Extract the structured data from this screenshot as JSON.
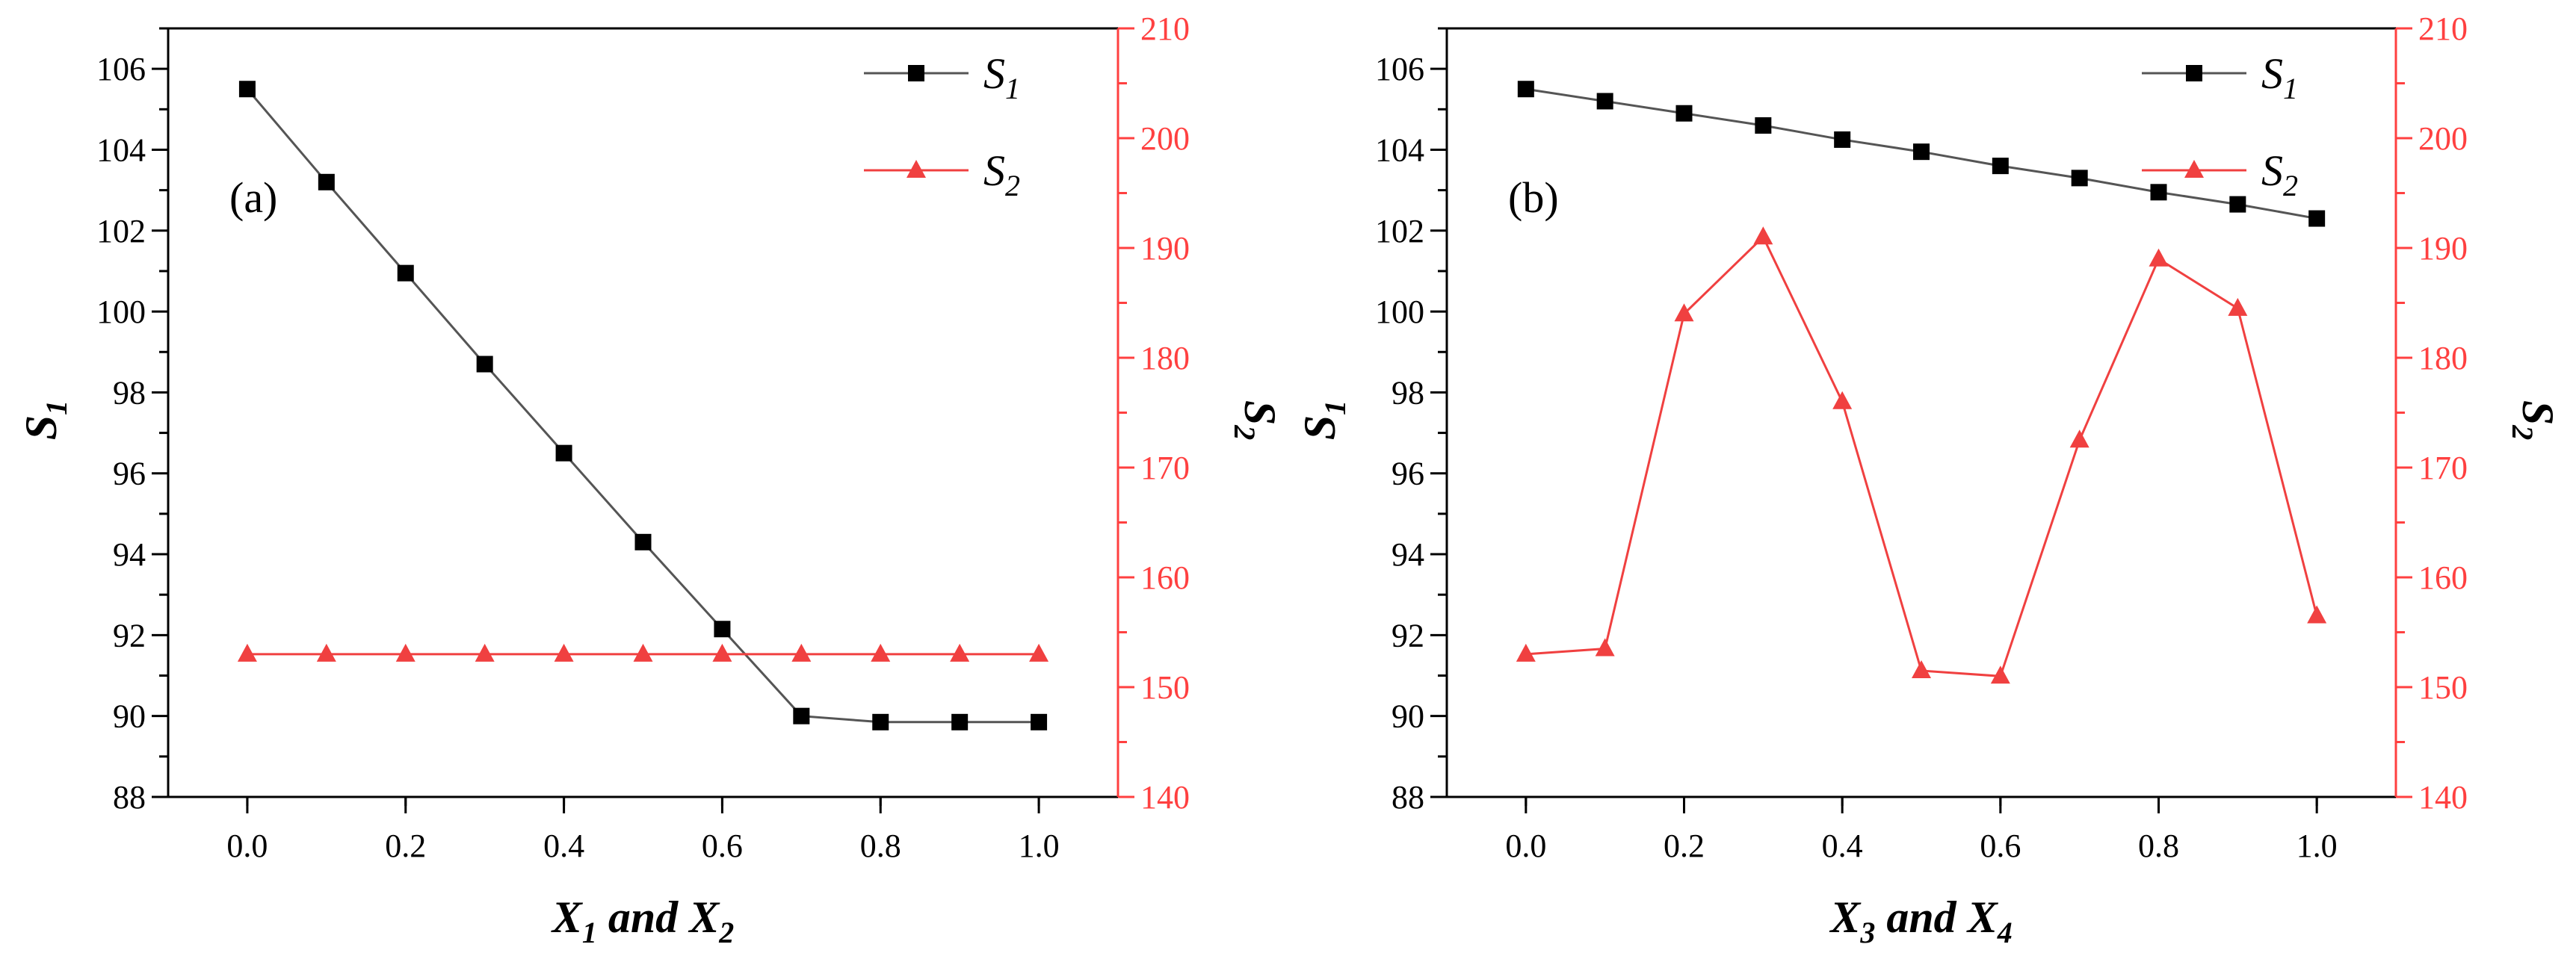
{
  "chart_data": [
    {
      "type": "line",
      "panel_label": "(a)",
      "x": [
        0.0,
        0.1,
        0.2,
        0.3,
        0.4,
        0.5,
        0.6,
        0.7,
        0.8,
        0.9,
        1.0
      ],
      "xlim": [
        -0.1,
        1.1
      ],
      "xticks": [
        "0.0",
        "0.2",
        "0.4",
        "0.6",
        "0.8",
        "1.0"
      ],
      "xlabel": {
        "v1": "X",
        "s1": "1",
        "mid": " and  ",
        "v2": "X",
        "s2": "2"
      },
      "y_left": {
        "label": "S",
        "sub": "1",
        "lim": [
          88,
          107
        ],
        "ticks": [
          "88",
          "90",
          "92",
          "94",
          "96",
          "98",
          "100",
          "102",
          "104",
          "106"
        ]
      },
      "y_right": {
        "label": "S",
        "sub": "2",
        "lim": [
          140,
          210
        ],
        "ticks": [
          "140",
          "150",
          "160",
          "170",
          "180",
          "190",
          "200",
          "210"
        ]
      },
      "series": [
        {
          "name": "S",
          "sub": "1",
          "axis": "left",
          "marker": "square",
          "color": "#000000",
          "line_color": "#555555",
          "values": [
            105.5,
            103.2,
            100.95,
            98.7,
            96.5,
            94.3,
            92.15,
            90.0,
            89.85,
            89.85,
            89.85
          ]
        },
        {
          "name": "S",
          "sub": "2",
          "axis": "right",
          "marker": "triangle",
          "color": "#f04040",
          "line_color": "#f04040",
          "values": [
            153,
            153,
            153,
            153,
            153,
            153,
            153,
            153,
            153,
            153,
            153
          ]
        }
      ],
      "legend": "top-right"
    },
    {
      "type": "line",
      "panel_label": "(b)",
      "x": [
        0.0,
        0.1,
        0.2,
        0.3,
        0.4,
        0.5,
        0.6,
        0.7,
        0.8,
        0.9,
        1.0
      ],
      "xlim": [
        -0.1,
        1.1
      ],
      "xticks": [
        "0.0",
        "0.2",
        "0.4",
        "0.6",
        "0.8",
        "1.0"
      ],
      "xlabel": {
        "v1": "X",
        "s1": "3",
        "mid": " and  ",
        "v2": "X",
        "s2": "4"
      },
      "y_left": {
        "label": "S",
        "sub": "1",
        "lim": [
          88,
          107
        ],
        "ticks": [
          "88",
          "90",
          "92",
          "94",
          "96",
          "98",
          "100",
          "102",
          "104",
          "106"
        ]
      },
      "y_right": {
        "label": "S",
        "sub": "2",
        "lim": [
          140,
          210
        ],
        "ticks": [
          "140",
          "150",
          "160",
          "170",
          "180",
          "190",
          "200",
          "210"
        ]
      },
      "series": [
        {
          "name": "S",
          "sub": "1",
          "axis": "left",
          "marker": "square",
          "color": "#000000",
          "line_color": "#555555",
          "values": [
            105.5,
            105.2,
            104.9,
            104.6,
            104.25,
            103.95,
            103.6,
            103.3,
            102.95,
            102.65,
            102.3
          ]
        },
        {
          "name": "S",
          "sub": "2",
          "axis": "right",
          "marker": "triangle",
          "color": "#f04040",
          "line_color": "#f04040",
          "values": [
            153,
            153.5,
            184,
            191,
            176,
            151.5,
            151,
            172.5,
            189,
            184.5,
            156.5
          ]
        }
      ],
      "legend": "top-right"
    }
  ]
}
